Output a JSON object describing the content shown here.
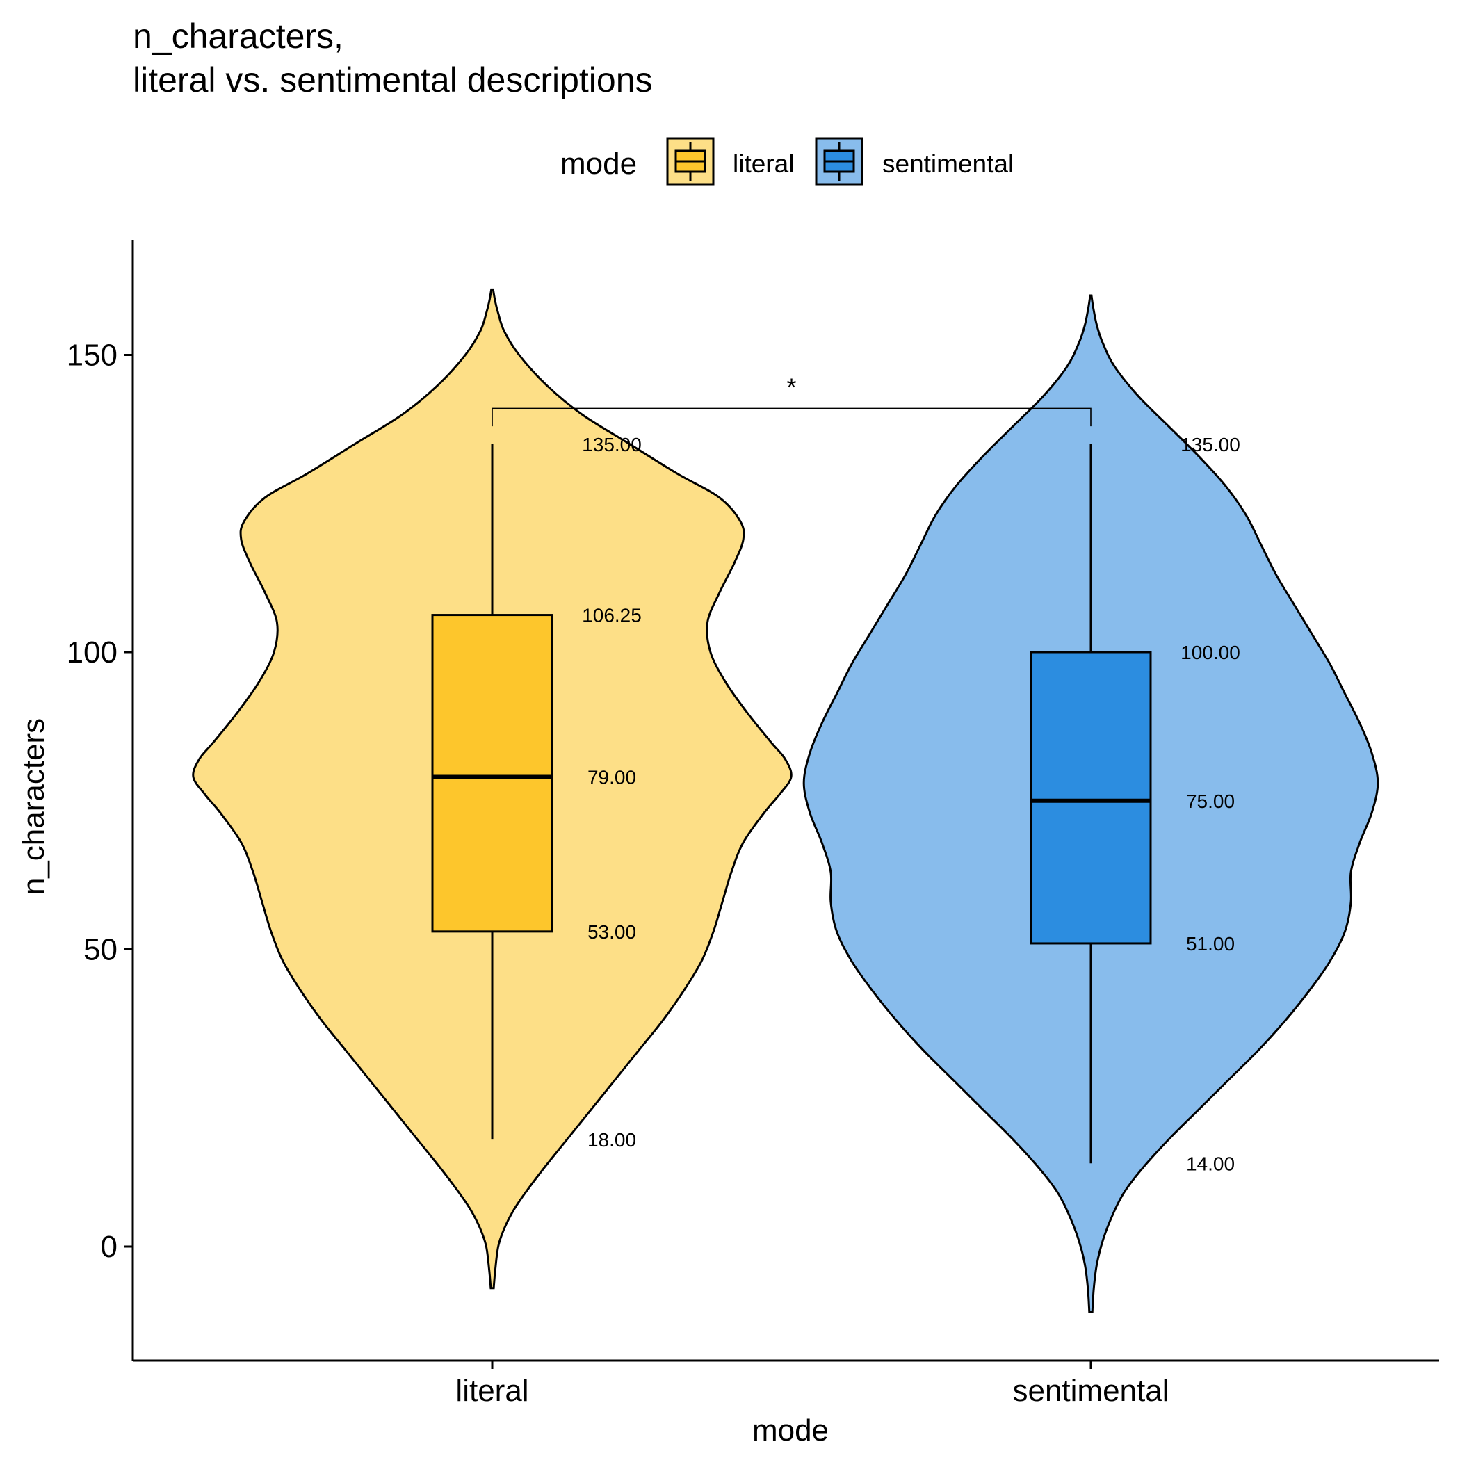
{
  "chart_data": {
    "type": "violin",
    "title_line1": "n_characters,",
    "title_line2": "literal vs. sentimental descriptions",
    "xlabel": "mode",
    "ylabel": "n_characters",
    "ylim": [
      -19,
      169
    ],
    "yticks": [
      0,
      50,
      100,
      150
    ],
    "legend": {
      "title": "mode",
      "position": "top",
      "entries": [
        "literal",
        "sentimental"
      ]
    },
    "significance": {
      "label": "*",
      "y": 141,
      "drop_to": 138
    },
    "categories": [
      "literal",
      "sentimental"
    ],
    "series": [
      {
        "name": "literal",
        "color": "#FDC62C",
        "violin_color": "#FDDF87",
        "box": {
          "min": 18,
          "q1": 53,
          "median": 79,
          "q3": 106.25,
          "max": 135
        },
        "labels": {
          "min": "18.00",
          "q1": "53.00",
          "median": "79.00",
          "q3": "106.25",
          "max": "135.00"
        },
        "violin_range": [
          -7,
          161
        ],
        "density": [
          [
            -7,
            0.005
          ],
          [
            -4,
            0.01
          ],
          [
            0,
            0.02
          ],
          [
            3,
            0.04
          ],
          [
            6,
            0.07
          ],
          [
            9,
            0.11
          ],
          [
            13,
            0.17
          ],
          [
            18,
            0.25
          ],
          [
            23,
            0.33
          ],
          [
            28,
            0.41
          ],
          [
            33,
            0.49
          ],
          [
            38,
            0.57
          ],
          [
            43,
            0.64
          ],
          [
            48,
            0.7
          ],
          [
            53,
            0.74
          ],
          [
            58,
            0.77
          ],
          [
            63,
            0.8
          ],
          [
            68,
            0.84
          ],
          [
            73,
            0.91
          ],
          [
            76,
            0.96
          ],
          [
            79,
            1.0
          ],
          [
            82,
            0.98
          ],
          [
            85,
            0.93
          ],
          [
            90,
            0.85
          ],
          [
            95,
            0.78
          ],
          [
            100,
            0.73
          ],
          [
            105,
            0.72
          ],
          [
            110,
            0.76
          ],
          [
            115,
            0.81
          ],
          [
            119,
            0.84
          ],
          [
            122,
            0.83
          ],
          [
            126,
            0.76
          ],
          [
            130,
            0.62
          ],
          [
            135,
            0.46
          ],
          [
            140,
            0.3
          ],
          [
            145,
            0.18
          ],
          [
            150,
            0.09
          ],
          [
            154,
            0.04
          ],
          [
            157,
            0.02
          ],
          [
            159,
            0.01
          ],
          [
            161,
            0.003
          ]
        ]
      },
      {
        "name": "sentimental",
        "color": "#2C8DE0",
        "violin_color": "#88BCEC",
        "box": {
          "min": 14,
          "q1": 51,
          "median": 75,
          "q3": 100,
          "max": 135
        },
        "labels": {
          "min": "14.00",
          "q1": "51.00",
          "median": "75.00",
          "q3": "100.00",
          "max": "135.00"
        },
        "violin_range": [
          -11,
          160
        ],
        "density": [
          [
            -11,
            0.005
          ],
          [
            -7,
            0.01
          ],
          [
            -3,
            0.02
          ],
          [
            1,
            0.04
          ],
          [
            5,
            0.07
          ],
          [
            9,
            0.11
          ],
          [
            13,
            0.17
          ],
          [
            18,
            0.26
          ],
          [
            23,
            0.36
          ],
          [
            28,
            0.46
          ],
          [
            33,
            0.56
          ],
          [
            38,
            0.65
          ],
          [
            43,
            0.73
          ],
          [
            48,
            0.8
          ],
          [
            53,
            0.85
          ],
          [
            58,
            0.87
          ],
          [
            63,
            0.87
          ],
          [
            68,
            0.9
          ],
          [
            73,
            0.94
          ],
          [
            78,
            0.96
          ],
          [
            83,
            0.94
          ],
          [
            88,
            0.9
          ],
          [
            93,
            0.85
          ],
          [
            98,
            0.8
          ],
          [
            103,
            0.74
          ],
          [
            108,
            0.68
          ],
          [
            113,
            0.62
          ],
          [
            118,
            0.57
          ],
          [
            123,
            0.52
          ],
          [
            128,
            0.45
          ],
          [
            133,
            0.36
          ],
          [
            138,
            0.26
          ],
          [
            143,
            0.16
          ],
          [
            148,
            0.08
          ],
          [
            152,
            0.04
          ],
          [
            155,
            0.02
          ],
          [
            158,
            0.008
          ],
          [
            160,
            0.002
          ]
        ]
      }
    ]
  }
}
